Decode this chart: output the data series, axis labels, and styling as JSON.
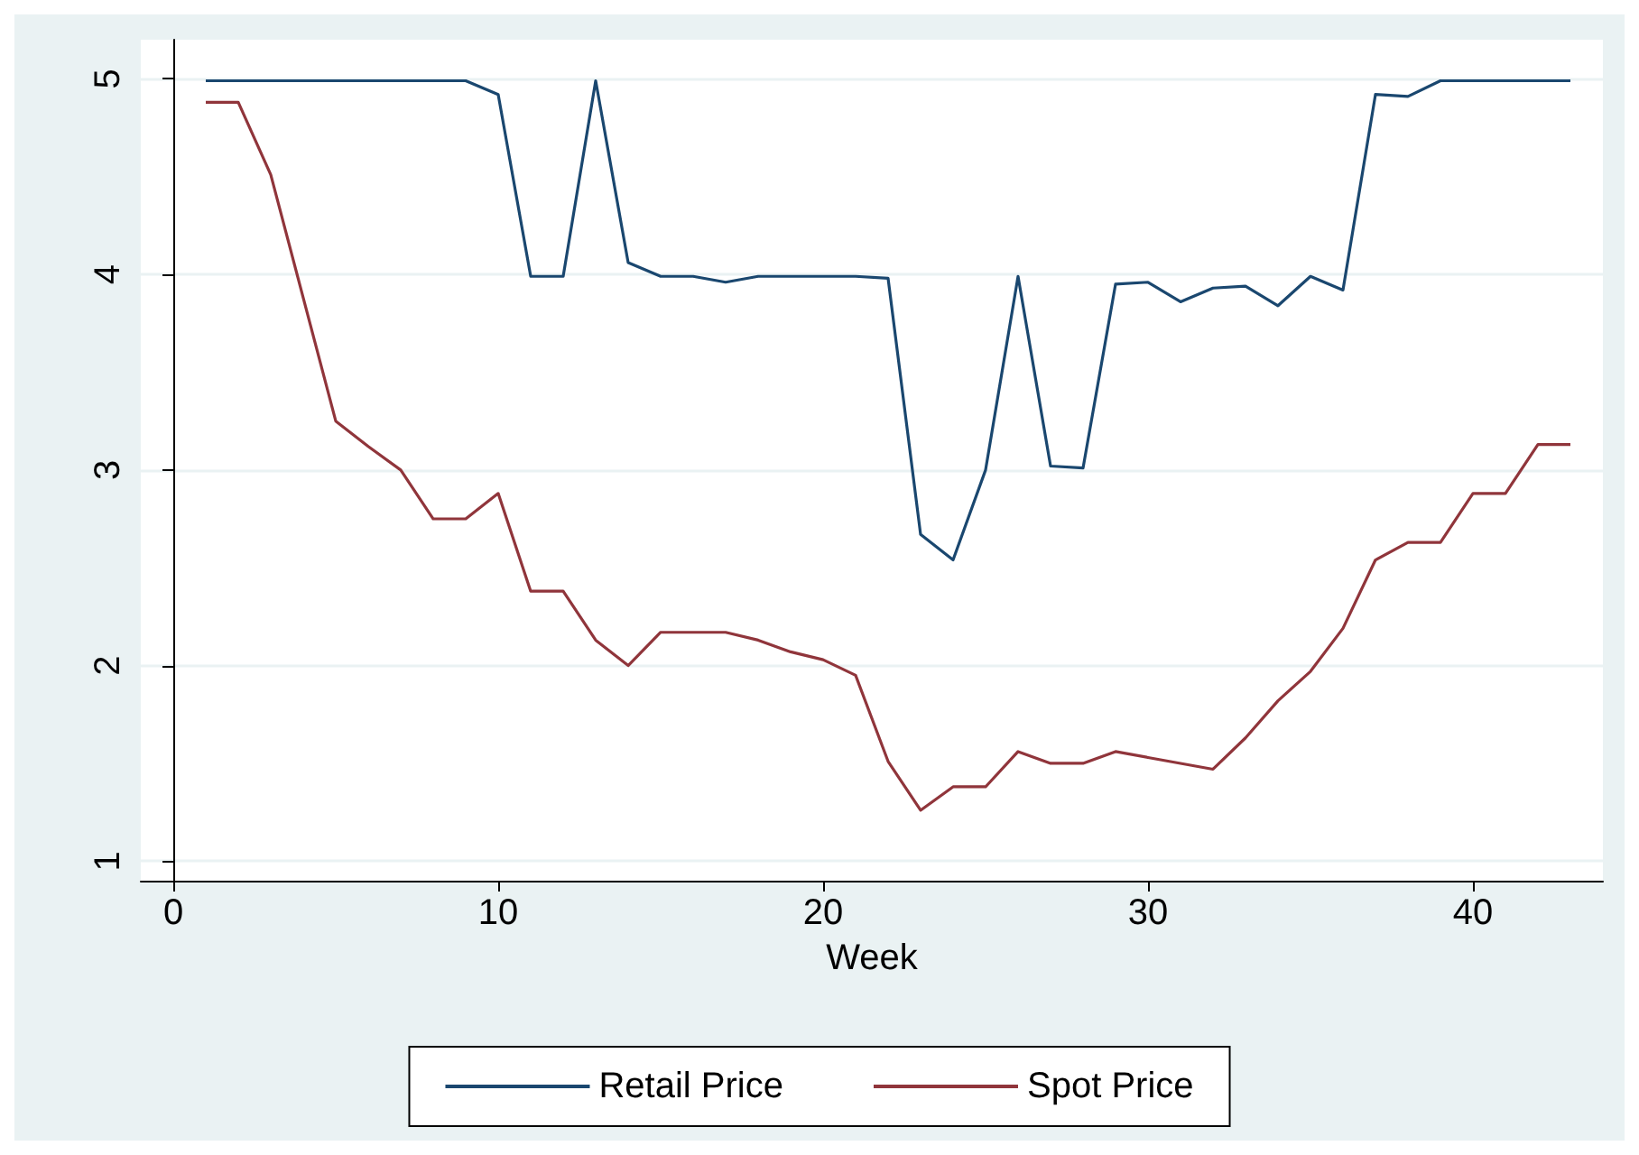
{
  "chart_data": {
    "type": "line",
    "xlabel": "Week",
    "x": [
      1,
      2,
      3,
      4,
      5,
      6,
      7,
      8,
      9,
      10,
      11,
      12,
      13,
      14,
      15,
      16,
      17,
      18,
      19,
      20,
      21,
      22,
      23,
      24,
      25,
      26,
      27,
      28,
      29,
      30,
      31,
      32,
      33,
      34,
      35,
      36,
      37,
      38,
      39,
      40,
      41,
      42,
      43
    ],
    "series": [
      {
        "name": "Retail Price",
        "color": "#1a476f",
        "values": [
          4.99,
          4.99,
          4.99,
          4.99,
          4.99,
          4.99,
          4.99,
          4.99,
          4.99,
          4.92,
          3.99,
          3.99,
          4.99,
          4.06,
          3.99,
          3.99,
          3.96,
          3.99,
          3.99,
          3.99,
          3.99,
          3.98,
          2.67,
          2.54,
          3.0,
          3.99,
          3.02,
          3.01,
          3.95,
          3.96,
          3.86,
          3.93,
          3.94,
          3.84,
          3.99,
          3.92,
          4.92,
          4.91,
          4.99,
          4.99,
          4.99,
          4.99,
          4.99
        ]
      },
      {
        "name": "Spot Price",
        "color": "#90353b",
        "values": [
          4.88,
          4.88,
          4.51,
          3.88,
          3.25,
          3.12,
          3.0,
          2.75,
          2.75,
          2.88,
          2.38,
          2.38,
          2.13,
          2.0,
          2.17,
          2.17,
          2.17,
          2.13,
          2.07,
          2.03,
          1.95,
          1.51,
          1.26,
          1.38,
          1.38,
          1.56,
          1.5,
          1.5,
          1.56,
          1.53,
          1.5,
          1.47,
          1.63,
          1.82,
          1.97,
          2.19,
          2.54,
          2.63,
          2.63,
          2.88,
          2.88,
          3.13,
          3.13
        ]
      }
    ],
    "xlim": [
      -1,
      44
    ],
    "xticks": [
      0,
      10,
      20,
      30,
      40
    ],
    "ylim": [
      0.9,
      5.2
    ],
    "yticks": [
      1,
      2,
      3,
      4,
      5
    ],
    "grid": "y",
    "legend": "bottom",
    "marker": "none",
    "line_style": "solid"
  }
}
